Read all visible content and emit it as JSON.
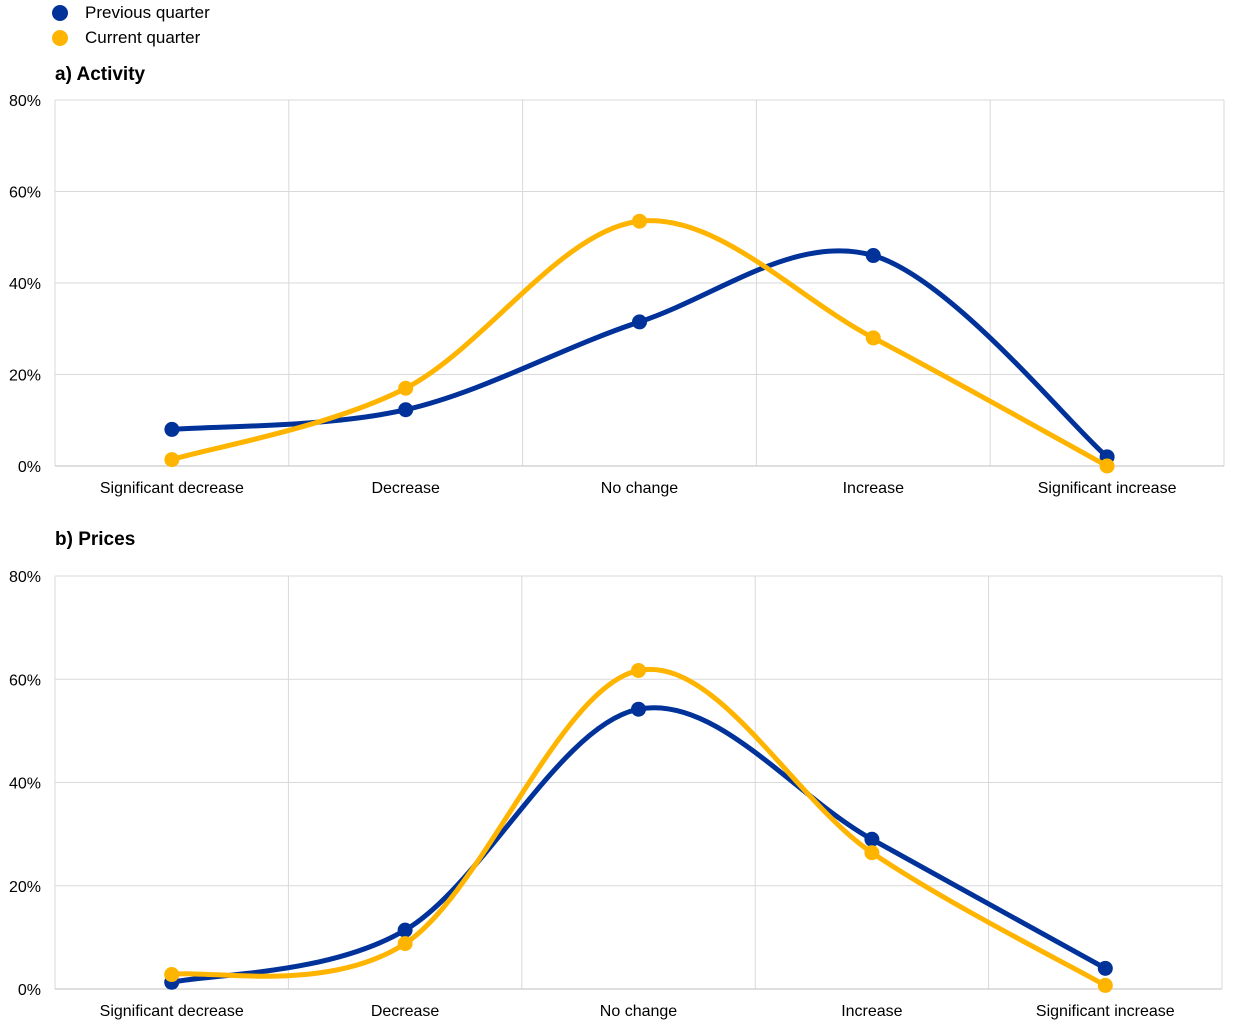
{
  "legend": [
    {
      "name": "Previous quarter",
      "color": "#003299"
    },
    {
      "name": "Current quarter",
      "color": "#FFB400"
    }
  ],
  "chart_data": [
    {
      "type": "line",
      "title": "a) Activity",
      "categories": [
        "Significant decrease",
        "Decrease",
        "No change",
        "Increase",
        "Significant increase"
      ],
      "series": [
        {
          "name": "Previous quarter",
          "color": "#003299",
          "values": [
            8,
            12.3,
            31.5,
            46,
            2
          ]
        },
        {
          "name": "Current quarter",
          "color": "#FFB400",
          "values": [
            1.4,
            17,
            53.5,
            28,
            0
          ]
        }
      ],
      "yticks": [
        "0%",
        "20%",
        "40%",
        "60%",
        "80%"
      ],
      "ylim": [
        0,
        80
      ],
      "smooth": true,
      "grid": true
    },
    {
      "type": "line",
      "title": "b) Prices",
      "categories": [
        "Significant decrease",
        "Decrease",
        "No change",
        "Increase",
        "Significant increase"
      ],
      "series": [
        {
          "name": "Previous quarter",
          "color": "#003299",
          "values": [
            1.3,
            11.4,
            54.2,
            29,
            4
          ]
        },
        {
          "name": "Current quarter",
          "color": "#FFB400",
          "values": [
            2.8,
            8.8,
            61.7,
            26.4,
            0.7
          ]
        }
      ],
      "yticks": [
        "0%",
        "20%",
        "40%",
        "60%",
        "80%"
      ],
      "ylim": [
        0,
        80
      ],
      "smooth": true,
      "grid": true
    }
  ]
}
